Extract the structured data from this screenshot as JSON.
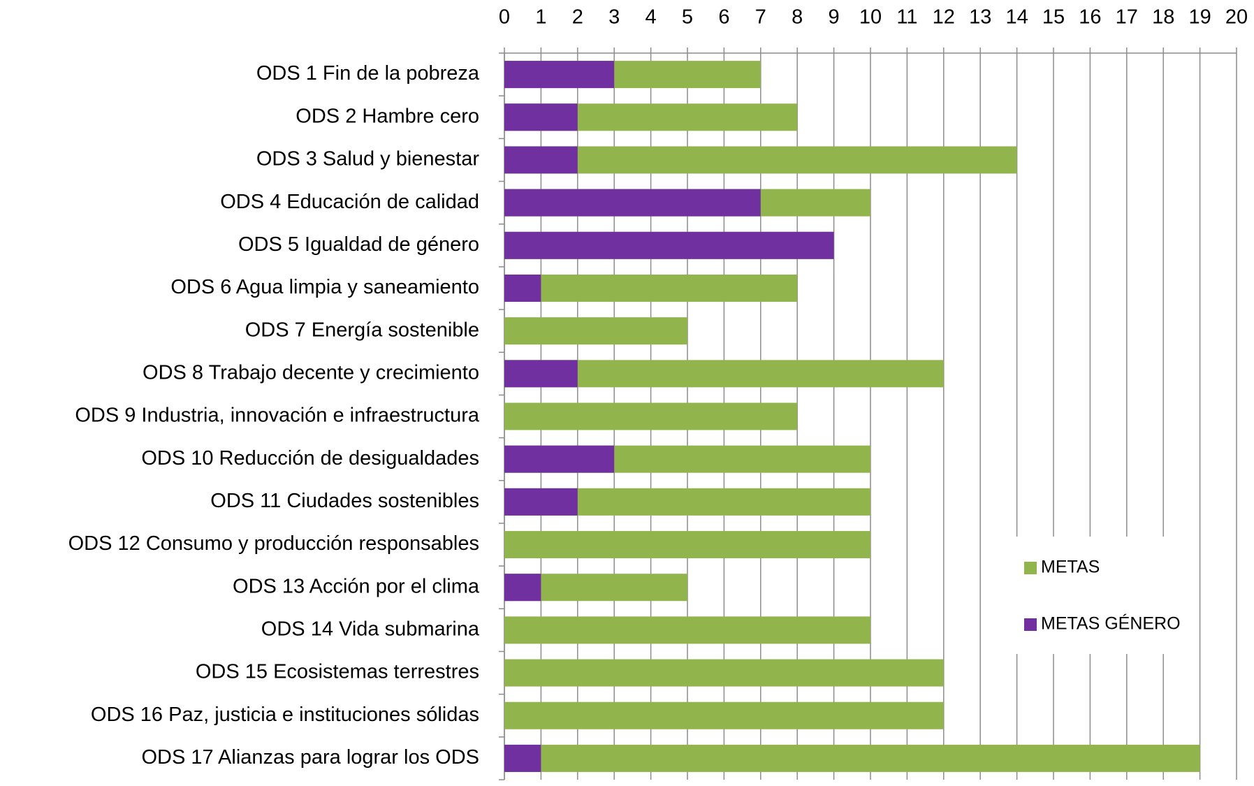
{
  "chart_data": {
    "type": "bar",
    "orientation": "horizontal",
    "overlap": true,
    "categories": [
      "ODS 1 Fin de la pobreza",
      "ODS 2 Hambre cero",
      "ODS 3 Salud y bienestar",
      "ODS 4 Educación de calidad",
      "ODS 5 Igualdad de género",
      "ODS 6 Agua limpia y saneamiento",
      "ODS 7 Energía sostenible",
      "ODS 8 Trabajo decente y crecimiento",
      "ODS 9 Industria, innovación e infraestructura",
      "ODS 10 Reducción de desigualdades",
      "ODS 11 Ciudades sostenibles",
      "ODS 12 Consumo y producción responsables",
      "ODS 13 Acción por el clima",
      "ODS 14 Vida submarina",
      "ODS 15 Ecosistemas terrestres",
      "ODS 16 Paz, justicia e instituciones sólidas",
      "ODS 17 Alianzas para lograr los ODS"
    ],
    "series": [
      {
        "name": "METAS",
        "color": "#92b44c",
        "values": [
          7,
          8,
          14,
          10,
          9,
          8,
          5,
          12,
          8,
          10,
          10,
          10,
          5,
          10,
          12,
          12,
          19
        ]
      },
      {
        "name": "METAS GÉNERO",
        "color": "#7030a0",
        "values": [
          3,
          2,
          2,
          7,
          9,
          1,
          0,
          2,
          0,
          3,
          2,
          0,
          1,
          0,
          0,
          0,
          1
        ]
      }
    ],
    "xlim": [
      0,
      20
    ],
    "xticks": [
      0,
      1,
      2,
      3,
      4,
      5,
      6,
      7,
      8,
      9,
      10,
      11,
      12,
      13,
      14,
      15,
      16,
      17,
      18,
      19,
      20
    ],
    "grid": true,
    "legend": "right"
  }
}
